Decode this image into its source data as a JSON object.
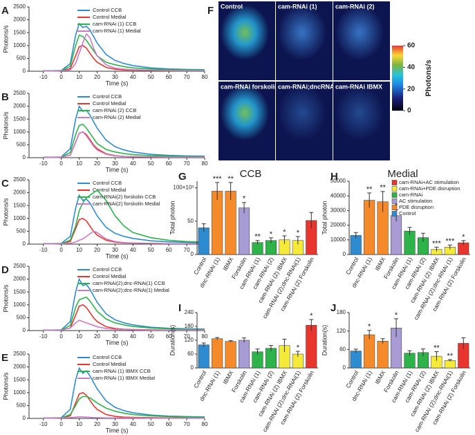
{
  "chart_data": [
    {
      "type": "line",
      "panel": "A",
      "ylabel": "Photons/s",
      "xlabel": "Time (s)",
      "xlim": [
        -18,
        80
      ],
      "ylim": [
        0,
        2500
      ],
      "xticks": [
        -10,
        0,
        10,
        20,
        30,
        40,
        50,
        60,
        70,
        80
      ],
      "yticks": [
        0,
        500,
        1000,
        1500,
        2000,
        2500
      ],
      "x": [
        -10,
        -5,
        0,
        5,
        8,
        10,
        12,
        14,
        16,
        18,
        20,
        25,
        30,
        35,
        40,
        50,
        60,
        70,
        80
      ],
      "series": [
        {
          "name": "Control CCB",
          "color": "#2e8bcf",
          "values": [
            20,
            20,
            30,
            300,
            1400,
            1850,
            1700,
            1750,
            1600,
            1350,
            1100,
            650,
            420,
            300,
            220,
            130,
            90,
            70,
            60
          ]
        },
        {
          "name": "Control Medial",
          "color": "#e8352e",
          "values": [
            10,
            10,
            20,
            100,
            600,
            950,
            1000,
            900,
            700,
            500,
            350,
            150,
            80,
            50,
            40,
            30,
            20,
            20,
            20
          ]
        },
        {
          "name": "cam-RNAi (1) CCB",
          "color": "#2db34a",
          "values": [
            10,
            10,
            20,
            200,
            1000,
            1400,
            1350,
            1200,
            1000,
            800,
            600,
            350,
            250,
            180,
            130,
            90,
            60,
            50,
            40
          ]
        },
        {
          "name": "cam-RNAi (1) Medial",
          "color": "#c97bc6",
          "values": [
            10,
            10,
            20,
            50,
            300,
            700,
            1100,
            1450,
            1300,
            900,
            600,
            250,
            120,
            80,
            60,
            40,
            30,
            20,
            20
          ]
        }
      ]
    },
    {
      "type": "line",
      "panel": "B",
      "ylabel": "Photons/s",
      "xlabel": "Time (s)",
      "xlim": [
        -18,
        80
      ],
      "ylim": [
        0,
        2500
      ],
      "xticks": [
        -10,
        0,
        10,
        20,
        30,
        40,
        50,
        60,
        70,
        80
      ],
      "yticks": [
        0,
        500,
        1000,
        1500,
        2000,
        2500
      ],
      "x": [
        -10,
        -5,
        0,
        5,
        8,
        10,
        12,
        14,
        16,
        18,
        20,
        25,
        30,
        35,
        40,
        50,
        60,
        70,
        80
      ],
      "series": [
        {
          "name": "Control CCB",
          "color": "#2e8bcf",
          "values": [
            20,
            20,
            30,
            350,
            1500,
            2000,
            1800,
            1850,
            1650,
            1400,
            1150,
            680,
            430,
            300,
            220,
            130,
            90,
            70,
            60
          ]
        },
        {
          "name": "Control Medial",
          "color": "#e8352e",
          "values": [
            10,
            10,
            20,
            100,
            600,
            950,
            1000,
            900,
            700,
            500,
            350,
            150,
            80,
            50,
            40,
            30,
            20,
            20,
            20
          ]
        },
        {
          "name": "cam-RNAi (2) CCB",
          "color": "#2db34a",
          "values": [
            10,
            10,
            20,
            200,
            900,
            1250,
            1300,
            1150,
            950,
            750,
            550,
            320,
            220,
            160,
            120,
            80,
            60,
            50,
            40
          ]
        },
        {
          "name": "cam-RNAi (2) Medial",
          "color": "#c97bc6",
          "values": [
            10,
            10,
            20,
            100,
            600,
            950,
            1000,
            850,
            650,
            450,
            300,
            130,
            70,
            50,
            40,
            30,
            20,
            20,
            20
          ]
        }
      ]
    },
    {
      "type": "line",
      "panel": "C",
      "ylabel": "Photons/s",
      "xlabel": "Time (s)",
      "xlim": [
        -18,
        80
      ],
      "ylim": [
        0,
        2500
      ],
      "xticks": [
        -10,
        0,
        10,
        20,
        30,
        40,
        50,
        60,
        70,
        80
      ],
      "yticks": [
        0,
        500,
        1000,
        1500,
        2000,
        2500
      ],
      "x": [
        -10,
        -5,
        0,
        5,
        8,
        10,
        12,
        14,
        16,
        18,
        20,
        25,
        30,
        35,
        40,
        50,
        60,
        70,
        80
      ],
      "series": [
        {
          "name": "Control CCB",
          "color": "#2e8bcf",
          "values": [
            20,
            20,
            30,
            300,
            1400,
            1900,
            1700,
            1750,
            1600,
            1350,
            1100,
            650,
            420,
            300,
            220,
            130,
            90,
            70,
            60
          ]
        },
        {
          "name": "Control Medial",
          "color": "#e8352e",
          "values": [
            10,
            10,
            20,
            100,
            600,
            950,
            1000,
            900,
            700,
            500,
            350,
            150,
            80,
            50,
            40,
            30,
            20,
            20,
            20
          ]
        },
        {
          "name": "cam-RNAi(2) forskolin CCB",
          "color": "#2db34a",
          "values": [
            10,
            10,
            20,
            150,
            700,
            1300,
            1600,
            1800,
            1900,
            2000,
            2100,
            1700,
            1100,
            700,
            450,
            250,
            150,
            100,
            80
          ]
        },
        {
          "name": "cam-RNAi(2) forskolin Medial",
          "color": "#c97bc6",
          "values": [
            10,
            10,
            20,
            30,
            80,
            150,
            200,
            300,
            400,
            500,
            450,
            200,
            100,
            60,
            40,
            30,
            20,
            20,
            20
          ]
        }
      ]
    },
    {
      "type": "line",
      "panel": "D",
      "ylabel": "Photons/s",
      "xlabel": "Time (s)",
      "xlim": [
        -18,
        80
      ],
      "ylim": [
        0,
        2500
      ],
      "xticks": [
        -10,
        0,
        10,
        20,
        30,
        40,
        50,
        60,
        70,
        80
      ],
      "yticks": [
        0,
        500,
        1000,
        1500,
        2000,
        2500
      ],
      "x": [
        -10,
        -5,
        0,
        5,
        8,
        10,
        12,
        14,
        16,
        18,
        20,
        25,
        30,
        35,
        40,
        50,
        60,
        70,
        80
      ],
      "series": [
        {
          "name": "Control CCB",
          "color": "#2e8bcf",
          "values": [
            20,
            20,
            30,
            350,
            1500,
            2000,
            1750,
            1800,
            1600,
            1350,
            1100,
            650,
            420,
            300,
            220,
            130,
            90,
            70,
            60
          ]
        },
        {
          "name": "Control Medial",
          "color": "#e8352e",
          "values": [
            10,
            10,
            20,
            100,
            600,
            950,
            1000,
            900,
            700,
            500,
            350,
            150,
            80,
            50,
            40,
            30,
            20,
            20,
            20
          ]
        },
        {
          "name": "cam-RNAi(2);dnc-RNAi(1) CCB",
          "color": "#2db34a",
          "values": [
            10,
            10,
            20,
            200,
            900,
            1200,
            1250,
            1300,
            1150,
            950,
            750,
            450,
            300,
            220,
            160,
            100,
            70,
            50,
            40
          ]
        },
        {
          "name": "cam-RNAi(2);dnc-RNAi(1) Medial",
          "color": "#c97bc6",
          "values": [
            10,
            10,
            20,
            100,
            300,
            400,
            350,
            300,
            250,
            200,
            150,
            80,
            50,
            40,
            30,
            20,
            20,
            20,
            20
          ]
        }
      ]
    },
    {
      "type": "line",
      "panel": "E",
      "ylabel": "Photons/s",
      "xlabel": "Time (s)",
      "xlim": [
        -18,
        80
      ],
      "ylim": [
        0,
        2500
      ],
      "xticks": [
        -10,
        0,
        10,
        20,
        30,
        40,
        50,
        60,
        70,
        80
      ],
      "yticks": [
        0,
        500,
        1000,
        1500,
        2000,
        2500
      ],
      "x": [
        -10,
        -5,
        0,
        5,
        8,
        10,
        12,
        14,
        16,
        18,
        20,
        25,
        30,
        35,
        40,
        50,
        60,
        70,
        80
      ],
      "series": [
        {
          "name": "Control CCB",
          "color": "#2e8bcf",
          "values": [
            20,
            20,
            30,
            350,
            1500,
            1950,
            1750,
            1850,
            1650,
            1400,
            1150,
            680,
            430,
            300,
            220,
            130,
            90,
            70,
            60
          ]
        },
        {
          "name": "Control Medial",
          "color": "#e8352e",
          "values": [
            10,
            10,
            20,
            100,
            600,
            950,
            1000,
            900,
            700,
            500,
            350,
            150,
            80,
            50,
            40,
            30,
            20,
            20,
            20
          ]
        },
        {
          "name": "cam-RNAi (1) IBMX CCB",
          "color": "#2db34a",
          "values": [
            10,
            10,
            20,
            150,
            500,
            750,
            850,
            850,
            800,
            700,
            600,
            400,
            280,
            200,
            150,
            100,
            70,
            50,
            40
          ]
        },
        {
          "name": "cam-RNAi (1) IBMX Medial",
          "color": "#c97bc6",
          "values": [
            10,
            10,
            20,
            30,
            50,
            60,
            60,
            50,
            40,
            30,
            30,
            20,
            20,
            20,
            20,
            10,
            10,
            10,
            10
          ]
        }
      ]
    },
    {
      "type": "bar",
      "panel": "G",
      "title": "CCB",
      "ylabel": "Total photon",
      "ylim": [
        0,
        110
      ],
      "yticks": [
        0,
        50,
        {
          "value": 100,
          "label": "100×10³"
        }
      ],
      "categories": [
        "Control",
        "dnc-RNAi (1)",
        "IBMX",
        "Forskolin",
        "cam-RNAi (1)",
        "cam-RNAi (2)",
        "cam-RNAi (2) IBMX",
        "cam-RNAi (2);dnc-RNAi(1)",
        "cam-RNAi (2) Forskolin"
      ],
      "values": [
        40,
        95,
        95,
        70,
        18,
        21,
        22,
        21,
        51
      ],
      "errors": [
        6,
        13,
        13,
        8,
        3,
        4,
        6,
        6,
        12
      ],
      "colors": [
        "#2e8bcf",
        "#f58a2a",
        "#f58a2a",
        "#a99bd3",
        "#2db34a",
        "#2db34a",
        "#f5ea3a",
        "#f5ea3a",
        "#e8352e"
      ],
      "annotations": [
        null,
        "***",
        "**",
        "*",
        "**",
        "*",
        "*",
        "*",
        null
      ]
    },
    {
      "type": "bar",
      "panel": "H",
      "title": "Medial",
      "ylabel": "Total photon",
      "ylim": [
        0,
        50000
      ],
      "yticks": [
        0,
        10000,
        20000,
        30000,
        40000,
        50000
      ],
      "categories": [
        "Control",
        "dnc-RNAi (1)",
        "IBMX",
        "Forskolin",
        "cam-RNAi (1)",
        "cam-RNAi (2)",
        "cam-RNAi (2) IBMX",
        "cam-RNAi (2);dnc-RNAi (1)",
        "cam-RNAi (2) Forskolin"
      ],
      "values": [
        13000,
        37000,
        36000,
        26500,
        16000,
        11500,
        3500,
        5000,
        8000
      ],
      "errors": [
        2000,
        5000,
        7000,
        4000,
        2500,
        3000,
        1500,
        1500,
        1500
      ],
      "colors": [
        "#2e8bcf",
        "#f58a2a",
        "#f58a2a",
        "#a99bd3",
        "#2db34a",
        "#2db34a",
        "#f5ea3a",
        "#f5ea3a",
        "#e8352e"
      ],
      "annotations": [
        null,
        "**",
        "**",
        "*",
        null,
        null,
        "***",
        "***",
        "*"
      ],
      "legend": [
        {
          "name": "cam-RNAi+AC stimulation",
          "color": "#e8352e"
        },
        {
          "name": "cam-RNAi+PDE disruption",
          "color": "#f5ea3a"
        },
        {
          "name": "cam-RNAi",
          "color": "#2db34a"
        },
        {
          "name": "AC stimulation",
          "color": "#a99bd3"
        },
        {
          "name": "PDE disruption",
          "color": "#f58a2a"
        },
        {
          "name": "Control",
          "color": "#2e8bcf"
        }
      ]
    },
    {
      "type": "bar",
      "panel": "I",
      "ylabel": "Duration(s)",
      "ylim": [
        0,
        240
      ],
      "yticks": [
        0,
        60,
        120,
        180,
        240
      ],
      "categories": [
        "Control",
        "dnc-RNAi (1)",
        "IBMX",
        "Forskolin",
        "cam-RNAi (1)",
        "cam-RNAi (2)",
        "cam-RNAi (2) IBMX",
        "cam-RNAi (2);dnc-RNAi(1)",
        "cam-RNAi (2) Forskolin"
      ],
      "values": [
        100,
        127,
        115,
        120,
        70,
        85,
        97,
        60,
        185
      ],
      "errors": [
        8,
        5,
        3,
        10,
        12,
        12,
        28,
        12,
        25
      ],
      "colors": [
        "#2e8bcf",
        "#f58a2a",
        "#f58a2a",
        "#a99bd3",
        "#2db34a",
        "#2db34a",
        "#f5ea3a",
        "#f5ea3a",
        "#e8352e"
      ],
      "annotations": [
        null,
        null,
        null,
        null,
        null,
        null,
        null,
        "*",
        "*"
      ]
    },
    {
      "type": "bar",
      "panel": "J",
      "ylabel": "Duration(s)",
      "ylim": [
        0,
        180
      ],
      "yticks": [
        0,
        60,
        120,
        180
      ],
      "categories": [
        "Control",
        "dnc-RNAi (1)",
        "IBMX",
        "Forskolin",
        "cam-RNAi (1)",
        "cam-RNAi (2)",
        "cam-RNAi (2) IBMX",
        "cam-RNAi (2);dnc-RNAi(1)",
        "cam-RNAi (2) Forskolin"
      ],
      "values": [
        55,
        108,
        87,
        130,
        48,
        50,
        38,
        24,
        80
      ],
      "errors": [
        6,
        14,
        8,
        30,
        8,
        12,
        15,
        3,
        18
      ],
      "colors": [
        "#2e8bcf",
        "#f58a2a",
        "#f58a2a",
        "#a99bd3",
        "#2db34a",
        "#2db34a",
        "#f5ea3a",
        "#f5ea3a",
        "#e8352e"
      ],
      "annotations": [
        null,
        "*",
        null,
        "*",
        null,
        null,
        "**",
        "**",
        null
      ]
    }
  ],
  "image_panel": {
    "panel": "F",
    "images": [
      "Control",
      "cam-RNAi (1)",
      "cam-RNAi (2)",
      "cam-RNAi forskolin",
      "cam-RNAi;dncRNAi",
      "cam-RNAi IBMX"
    ],
    "colorbar": {
      "label": "Photons/s",
      "lim": [
        0,
        60
      ],
      "ticks": [
        0,
        20,
        40,
        60
      ]
    }
  }
}
